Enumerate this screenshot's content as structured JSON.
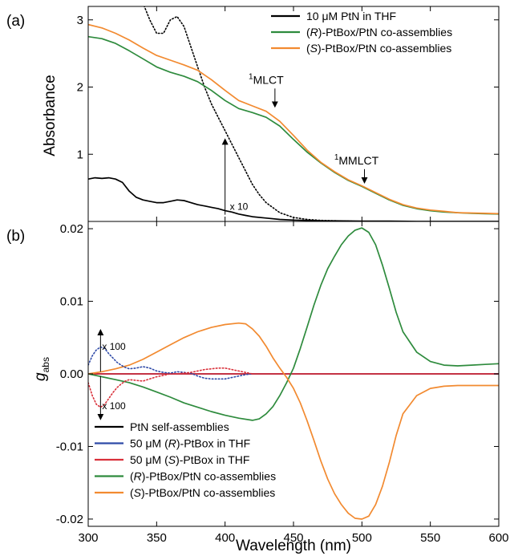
{
  "chart_data": [
    {
      "panel": "(a)",
      "type": "line",
      "xlabel": "Wavelength (nm)",
      "ylabel": "Absorbance",
      "xlim": [
        300,
        600
      ],
      "ylim": [
        0,
        3.2
      ],
      "xticks": [
        300,
        350,
        400,
        450,
        500,
        550,
        600
      ],
      "yticks": [
        1,
        2,
        3
      ],
      "tick_labels_x": [
        "300",
        "350",
        "400",
        "450",
        "500",
        "550",
        "600"
      ],
      "tick_labels_y": [
        "1",
        "2",
        "3"
      ],
      "legend_position": "top-right",
      "series": [
        {
          "name": "10 μM PtN in THF",
          "name_parts": [
            "10 μM PtN in THF"
          ],
          "color": "#000000",
          "style": "solid",
          "x": [
            300,
            305,
            310,
            315,
            320,
            325,
            330,
            335,
            340,
            345,
            350,
            355,
            360,
            365,
            370,
            375,
            380,
            385,
            390,
            395,
            400,
            405,
            410,
            415,
            420,
            430,
            440,
            450,
            460,
            470,
            480,
            500,
            520,
            540,
            560,
            580,
            600
          ],
          "y": [
            0.63,
            0.65,
            0.64,
            0.65,
            0.63,
            0.58,
            0.45,
            0.36,
            0.32,
            0.3,
            0.28,
            0.28,
            0.3,
            0.32,
            0.31,
            0.28,
            0.25,
            0.23,
            0.21,
            0.19,
            0.16,
            0.14,
            0.11,
            0.09,
            0.07,
            0.05,
            0.03,
            0.02,
            0.015,
            0.01,
            0.01,
            0.005,
            0.005,
            0.0,
            0.0,
            0.0,
            0.0
          ]
        },
        {
          "name": "10 μM PtN in THF × 10",
          "name_parts": [
            "x 10"
          ],
          "color": "#000000",
          "style": "dotted",
          "x": [
            339,
            345,
            350,
            355,
            360,
            365,
            370,
            375,
            380,
            385,
            390,
            395,
            400,
            405,
            410,
            415,
            420,
            425,
            430,
            440,
            450,
            460,
            470,
            480,
            500,
            520
          ],
          "y": [
            3.3,
            3.0,
            2.8,
            2.8,
            3.0,
            3.05,
            2.9,
            2.6,
            2.3,
            2.0,
            1.75,
            1.55,
            1.35,
            1.15,
            0.95,
            0.75,
            0.55,
            0.4,
            0.28,
            0.13,
            0.06,
            0.03,
            0.015,
            0.01,
            0.0,
            0.0
          ]
        },
        {
          "name": "(R)-PtBox/PtN co-assemblies",
          "name_parts": [
            "(",
            "R",
            ")-PtBox/PtN co-assemblies"
          ],
          "color": "#2e8b3d",
          "style": "solid",
          "x": [
            300,
            310,
            320,
            330,
            340,
            350,
            360,
            370,
            380,
            390,
            400,
            410,
            420,
            430,
            440,
            450,
            460,
            470,
            480,
            490,
            500,
            510,
            520,
            530,
            540,
            550,
            560,
            570,
            580,
            590,
            600
          ],
          "y": [
            2.75,
            2.72,
            2.65,
            2.54,
            2.42,
            2.3,
            2.22,
            2.16,
            2.08,
            1.95,
            1.8,
            1.68,
            1.62,
            1.55,
            1.42,
            1.22,
            1.03,
            0.87,
            0.73,
            0.61,
            0.52,
            0.42,
            0.32,
            0.24,
            0.19,
            0.16,
            0.14,
            0.13,
            0.12,
            0.115,
            0.11
          ]
        },
        {
          "name": "(S)-PtBox/PtN co-assemblies",
          "name_parts": [
            "(",
            "S",
            ")-PtBox/PtN co-assemblies"
          ],
          "color": "#f28a30",
          "style": "solid",
          "x": [
            300,
            310,
            320,
            330,
            340,
            350,
            360,
            370,
            380,
            390,
            400,
            410,
            420,
            430,
            440,
            450,
            460,
            470,
            480,
            490,
            500,
            510,
            520,
            530,
            540,
            550,
            560,
            570,
            580,
            590,
            600
          ],
          "y": [
            2.93,
            2.88,
            2.8,
            2.7,
            2.58,
            2.47,
            2.4,
            2.33,
            2.25,
            2.11,
            1.95,
            1.8,
            1.72,
            1.64,
            1.49,
            1.28,
            1.06,
            0.88,
            0.74,
            0.62,
            0.53,
            0.43,
            0.33,
            0.25,
            0.2,
            0.17,
            0.15,
            0.13,
            0.125,
            0.12,
            0.115
          ]
        }
      ],
      "annotations": [
        {
          "sup": "1",
          "text": "MLCT",
          "x": 430,
          "y": 2.05,
          "arrow_to": 1.68
        },
        {
          "sup": "1",
          "text": "MMLCT",
          "x": 496,
          "y": 0.85,
          "arrow_to": 0.55
        },
        {
          "text": "x 10",
          "x": 400,
          "y": 0.1,
          "arrow_to": 1.25
        }
      ]
    },
    {
      "panel": "(b)",
      "type": "line",
      "xlabel": "Wavelength (nm)",
      "ylabel": "g",
      "ylabel_sub": "abs",
      "xlim": [
        300,
        600
      ],
      "ylim": [
        -0.021,
        0.021
      ],
      "xticks": [
        300,
        350,
        400,
        450,
        500,
        550,
        600
      ],
      "yticks": [
        -0.02,
        -0.01,
        0.0,
        0.01,
        0.02
      ],
      "tick_labels_x": [
        "300",
        "350",
        "400",
        "450",
        "500",
        "550",
        "600"
      ],
      "tick_labels_y": [
        "-0.02",
        "-0.01",
        "0.00",
        "0.01",
        "0.02"
      ],
      "legend_position": "bottom-left",
      "series": [
        {
          "name": "PtN self-assemblies",
          "name_parts": [
            "PtN self-assemblies"
          ],
          "color": "#000000",
          "style": "solid",
          "x": [
            300,
            350,
            400,
            450,
            500,
            550,
            600
          ],
          "y": [
            0.0,
            0.0,
            0.0,
            0.0,
            0.0,
            0.0,
            0.0
          ]
        },
        {
          "name": "50 μM (R)-PtBox in THF",
          "name_parts": [
            "50 μM (",
            "R",
            ")-PtBox in THF"
          ],
          "color": "#2f4aa8",
          "style": "solid",
          "x": [
            300,
            350,
            400,
            450,
            500,
            550,
            600
          ],
          "y": [
            0.0,
            0.0,
            0.0,
            0.0,
            0.0,
            0.0,
            0.0
          ]
        },
        {
          "name": "50 μM (S)-PtBox in THF",
          "name_parts": [
            "50 μM (",
            "S",
            ")-PtBox in THF"
          ],
          "color": "#d9303a",
          "style": "solid",
          "x": [
            300,
            350,
            400,
            450,
            500,
            550,
            600
          ],
          "y": [
            0.0,
            0.0,
            0.0,
            0.0,
            0.0,
            0.0,
            0.0
          ]
        },
        {
          "name": "(R)-PtBox/PtN co-assemblies",
          "name_parts": [
            "(",
            "R",
            ")-PtBox/PtN co-assemblies"
          ],
          "color": "#2e8b3d",
          "style": "solid",
          "x": [
            300,
            310,
            320,
            330,
            340,
            350,
            360,
            370,
            380,
            390,
            400,
            410,
            420,
            425,
            430,
            435,
            440,
            445,
            450,
            455,
            460,
            465,
            470,
            475,
            480,
            485,
            490,
            495,
            500,
            505,
            510,
            515,
            520,
            525,
            530,
            540,
            550,
            560,
            570,
            580,
            590,
            600
          ],
          "y": [
            0.0,
            -0.0004,
            -0.0008,
            -0.0012,
            -0.0018,
            -0.0025,
            -0.0032,
            -0.004,
            -0.0046,
            -0.0052,
            -0.0057,
            -0.0061,
            -0.0064,
            -0.0062,
            -0.0055,
            -0.0045,
            -0.003,
            -0.0012,
            0.0008,
            0.0035,
            0.0065,
            0.0095,
            0.0122,
            0.0145,
            0.0162,
            0.0178,
            0.019,
            0.0198,
            0.0201,
            0.0195,
            0.0178,
            0.015,
            0.0118,
            0.0085,
            0.0058,
            0.003,
            0.0017,
            0.0012,
            0.0011,
            0.0012,
            0.0013,
            0.0014
          ]
        },
        {
          "name": "(S)-PtBox/PtN co-assemblies",
          "name_parts": [
            "(",
            "S",
            ")-PtBox/PtN co-assemblies"
          ],
          "color": "#f28a30",
          "style": "solid",
          "x": [
            300,
            310,
            320,
            330,
            340,
            350,
            360,
            370,
            380,
            390,
            400,
            410,
            415,
            420,
            425,
            430,
            435,
            440,
            445,
            450,
            455,
            460,
            465,
            470,
            475,
            480,
            485,
            490,
            495,
            500,
            505,
            510,
            515,
            520,
            525,
            530,
            540,
            550,
            560,
            570,
            580,
            590,
            600
          ],
          "y": [
            0.0,
            0.0003,
            0.0007,
            0.0012,
            0.002,
            0.003,
            0.004,
            0.005,
            0.0058,
            0.0064,
            0.0068,
            0.007,
            0.0069,
            0.0062,
            0.0052,
            0.0038,
            0.0022,
            0.0008,
            -0.0005,
            -0.002,
            -0.004,
            -0.0065,
            -0.0092,
            -0.012,
            -0.0145,
            -0.0165,
            -0.018,
            -0.0192,
            -0.0199,
            -0.02,
            -0.0196,
            -0.018,
            -0.0155,
            -0.0122,
            -0.0085,
            -0.0055,
            -0.003,
            -0.002,
            -0.0017,
            -0.0016,
            -0.0016,
            -0.0016,
            -0.0016
          ]
        },
        {
          "name": "50 μM (R)-PtBox in THF × 100",
          "name_parts": [
            "x 100"
          ],
          "color": "#2f4aa8",
          "style": "dotted",
          "x": [
            300,
            303,
            306,
            309,
            312,
            315,
            318,
            321,
            324,
            327,
            330,
            335,
            340,
            345,
            350,
            355,
            360,
            365,
            370,
            375,
            380,
            385,
            390,
            395,
            400,
            405,
            410,
            415,
            420
          ],
          "y": [
            0.0012,
            0.0025,
            0.0033,
            0.0037,
            0.0035,
            0.0028,
            0.0022,
            0.0016,
            0.0012,
            0.0009,
            0.0007,
            0.0008,
            0.001,
            0.0008,
            0.0004,
            0.0002,
            0.0001,
            0.0003,
            0.0002,
            0.0001,
            -0.0003,
            -0.0006,
            -0.0007,
            -0.0007,
            -0.0007,
            -0.0005,
            -0.0003,
            -0.0001,
            0.0
          ]
        },
        {
          "name": "50 μM (S)-PtBox in THF × 100",
          "name_parts": [
            "x 100"
          ],
          "color": "#d9303a",
          "style": "dotted",
          "x": [
            300,
            303,
            306,
            309,
            312,
            315,
            318,
            321,
            324,
            327,
            330,
            335,
            340,
            345,
            350,
            355,
            360,
            365,
            370,
            375,
            380,
            385,
            390,
            395,
            400,
            405,
            410,
            415,
            420
          ],
          "y": [
            -0.0012,
            -0.003,
            -0.0042,
            -0.0046,
            -0.0042,
            -0.0034,
            -0.0026,
            -0.0019,
            -0.0014,
            -0.001,
            -0.0008,
            -0.0009,
            -0.001,
            -0.0007,
            -0.0004,
            -0.0002,
            0.0,
            0.0,
            0.0001,
            0.0002,
            0.0004,
            0.0006,
            0.0007,
            0.0008,
            0.0008,
            0.0006,
            0.0004,
            0.0002,
            0.0
          ]
        }
      ],
      "annotations": [
        {
          "text": "x 100",
          "x": 309,
          "y": 0.0053,
          "arrow_to": 0.0003
        },
        {
          "text": "x 100",
          "x": 309,
          "y": -0.0055,
          "arrow_to": -0.0003
        }
      ]
    }
  ]
}
